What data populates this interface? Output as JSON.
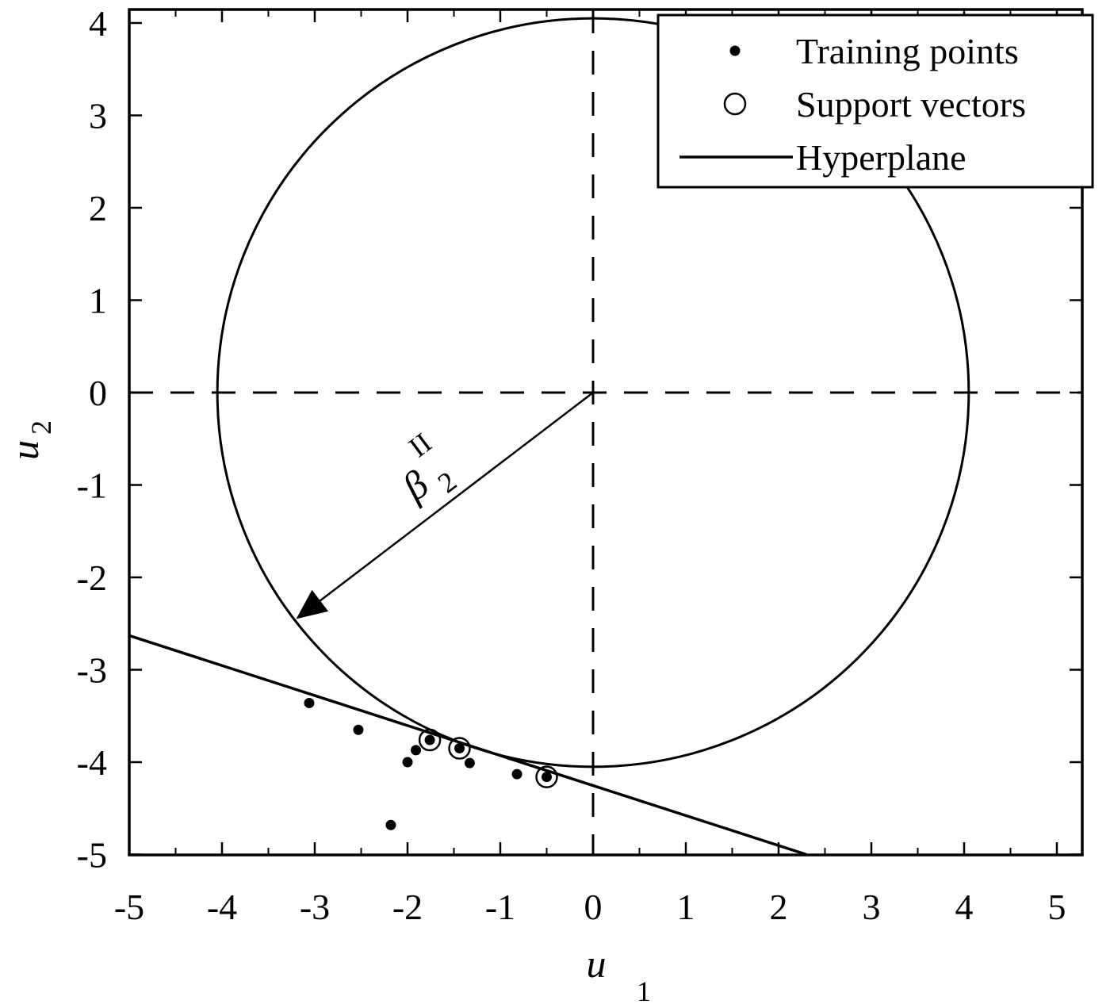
{
  "chart_data": {
    "type": "scatter",
    "title": "",
    "xlabel": "u",
    "xlabel_sub": "1",
    "ylabel": "u",
    "ylabel_sub": "2",
    "xlim": [
      -5,
      5.5
    ],
    "ylim": [
      -5,
      4.15
    ],
    "xticks": [
      -5,
      -4,
      -3,
      -2,
      -1,
      0,
      1,
      2,
      3,
      4,
      5
    ],
    "yticks": [
      4,
      3,
      2,
      1,
      0,
      -1,
      -2,
      -3,
      -4,
      -5
    ],
    "xtick_labels": [
      "-5",
      "-4",
      "-3",
      "-2",
      "-1",
      "0",
      "1",
      "2",
      "3",
      "4",
      "5"
    ],
    "ytick_labels": [
      "4",
      "3",
      "2",
      "1",
      "0",
      "-1",
      "-2",
      "-3",
      "-4",
      "-5"
    ],
    "grid": false,
    "legend_position": "upper right",
    "legend": [
      {
        "label": "Training points",
        "marker": "dot"
      },
      {
        "label": "Support vectors",
        "marker": "open-circle"
      },
      {
        "label": "Hyperplane",
        "marker": "line"
      }
    ],
    "series": [
      {
        "name": "Training points",
        "points": [
          [
            -3.06,
            -3.36
          ],
          [
            -2.53,
            -3.65
          ],
          [
            -1.91,
            -3.87
          ],
          [
            -2.0,
            -4.0
          ],
          [
            -1.76,
            -3.76
          ],
          [
            -1.44,
            -3.85
          ],
          [
            -1.33,
            -4.01
          ],
          [
            -0.82,
            -4.13
          ],
          [
            -0.5,
            -4.16
          ],
          [
            -2.18,
            -4.68
          ]
        ]
      },
      {
        "name": "Support vectors",
        "points": [
          [
            -1.76,
            -3.76
          ],
          [
            -1.44,
            -3.85
          ],
          [
            -0.5,
            -4.16
          ]
        ]
      },
      {
        "name": "Hyperplane",
        "line": [
          [
            -5,
            -2.63
          ],
          [
            2.3,
            -5.0
          ]
        ]
      }
    ],
    "circle": {
      "center": [
        0,
        0
      ],
      "radius": 4.05
    },
    "reference_lines": {
      "horizontal_dashed_at_u2": 0,
      "vertical_dashed_at_u1": 0
    },
    "annotations": [
      {
        "type": "arrow",
        "from": [
          0,
          0
        ],
        "to": [
          -3.2,
          -2.45
        ],
        "label": "β",
        "label_sub": "2",
        "label_sup": "II"
      }
    ]
  }
}
